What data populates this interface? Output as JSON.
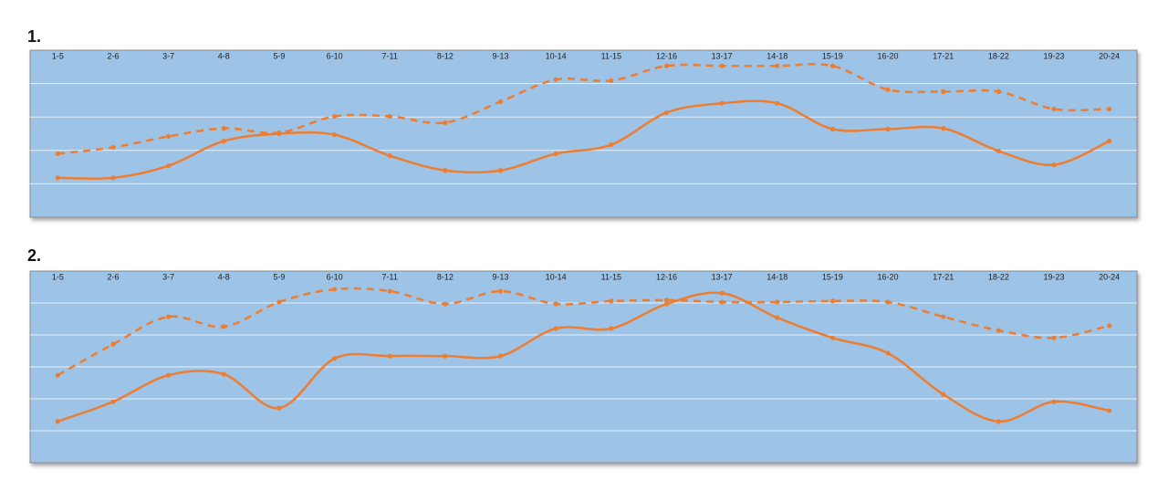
{
  "chart_data": [
    {
      "type": "line",
      "title": "1.",
      "categories": [
        "1-5",
        "2-6",
        "3-7",
        "4-8",
        "5-9",
        "6-10",
        "7-11",
        "8-12",
        "9-13",
        "10-14",
        "11-15",
        "12-16",
        "13-17",
        "14-18",
        "15-19",
        "16-20",
        "17-21",
        "18-22",
        "19-23",
        "20-24"
      ],
      "ylim": [
        0,
        5
      ],
      "yticks": [
        0,
        1,
        2,
        3,
        4,
        5
      ],
      "grid": true,
      "background": "#9dc3e6",
      "series": [
        {
          "color": "#ed7d31",
          "dash": "solid",
          "values": [
            1.18,
            1.18,
            1.54,
            2.28,
            2.5,
            2.47,
            1.84,
            1.4,
            1.4,
            1.9,
            2.17,
            3.13,
            3.41,
            3.41,
            2.64,
            2.64,
            2.66,
            1.98,
            1.57,
            2.28
          ]
        },
        {
          "color": "#ed7d31",
          "dash": "dashed",
          "values": [
            1.9,
            2.09,
            2.42,
            2.66,
            2.53,
            3.02,
            3.02,
            2.83,
            3.46,
            4.12,
            4.09,
            4.53,
            4.53,
            4.53,
            4.53,
            3.82,
            3.76,
            3.76,
            3.24,
            3.24
          ]
        }
      ]
    },
    {
      "type": "line",
      "title": "2.",
      "categories": [
        "1-5",
        "2-6",
        "3-7",
        "4-8",
        "5-9",
        "6-10",
        "7-11",
        "8-12",
        "9-13",
        "10-14",
        "11-15",
        "12-16",
        "13-17",
        "14-18",
        "15-19",
        "16-20",
        "17-21",
        "18-22",
        "19-23",
        "20-24"
      ],
      "ylim": [
        0,
        6
      ],
      "yticks": [
        0,
        1,
        2,
        3,
        4,
        5,
        6
      ],
      "grid": true,
      "background": "#9dc3e6",
      "series": [
        {
          "color": "#ed7d31",
          "dash": "solid",
          "values": [
            1.29,
            1.91,
            2.74,
            2.77,
            1.71,
            3.26,
            3.34,
            3.34,
            3.34,
            4.2,
            4.2,
            4.97,
            5.31,
            4.54,
            3.91,
            3.43,
            2.14,
            1.29,
            1.91,
            1.63
          ]
        },
        {
          "color": "#ed7d31",
          "dash": "dashed",
          "values": [
            2.74,
            3.71,
            4.57,
            4.26,
            5.03,
            5.43,
            5.37,
            4.97,
            5.37,
            4.97,
            5.06,
            5.09,
            5.03,
            5.03,
            5.06,
            5.03,
            4.57,
            4.14,
            3.91,
            4.29
          ]
        }
      ]
    }
  ]
}
